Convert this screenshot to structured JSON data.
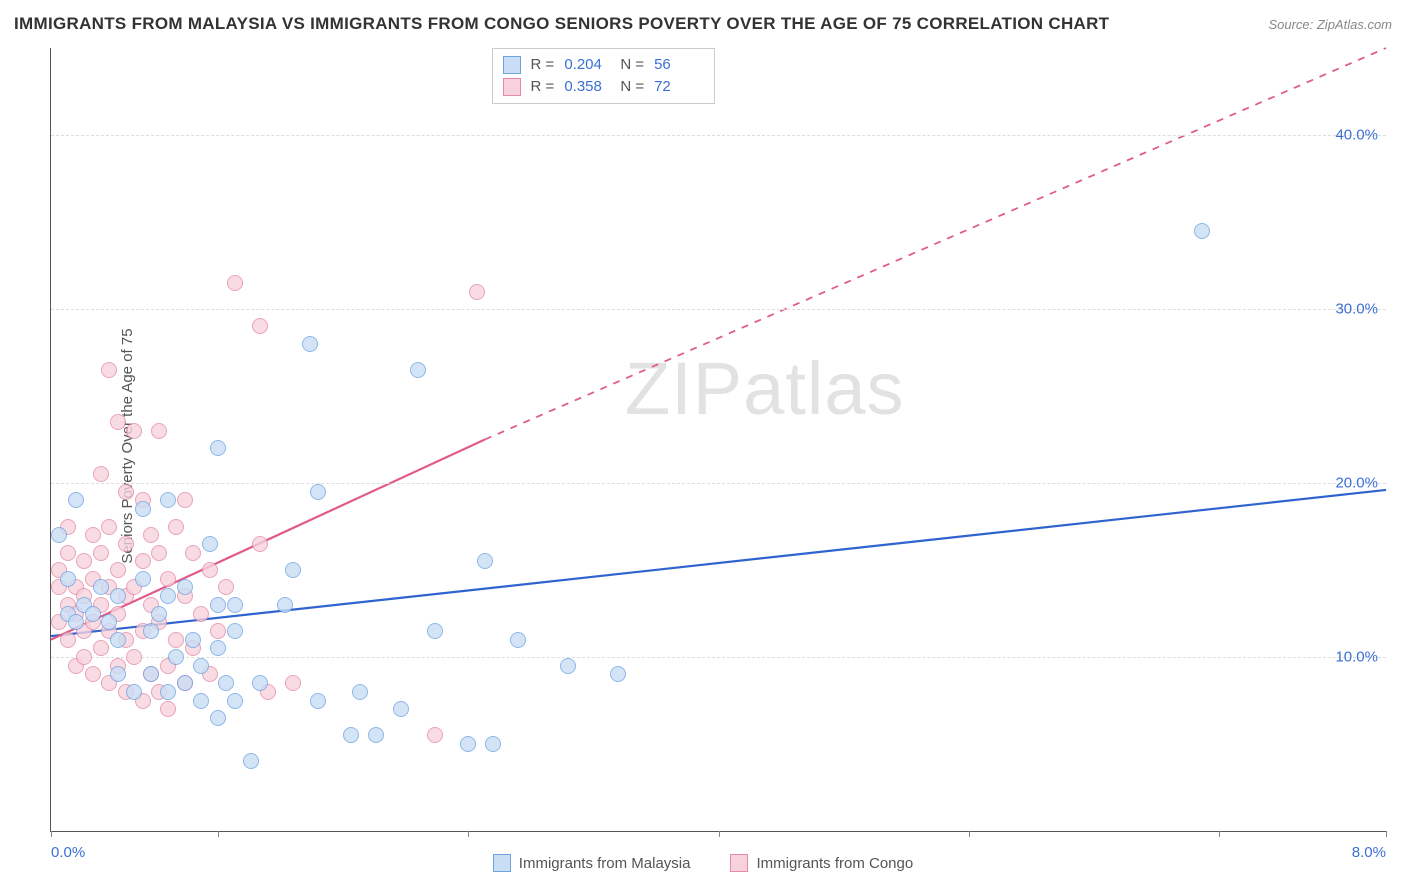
{
  "title": "IMMIGRANTS FROM MALAYSIA VS IMMIGRANTS FROM CONGO SENIORS POVERTY OVER THE AGE OF 75 CORRELATION CHART",
  "source_label": "Source: ZipAtlas.com",
  "y_axis_label": "Seniors Poverty Over the Age of 75",
  "watermark_prefix": "ZIP",
  "watermark_suffix": "atlas",
  "chart": {
    "type": "scatter",
    "xlim": [
      0.0,
      8.0
    ],
    "ylim": [
      0.0,
      45.0
    ],
    "x_ticks": [
      0.0,
      1.0,
      2.5,
      4.0,
      5.5,
      7.0,
      8.0
    ],
    "x_tick_labels_shown": {
      "0": "0.0%",
      "6": "8.0%"
    },
    "y_ticks": [
      10.0,
      20.0,
      30.0,
      40.0
    ],
    "y_tick_labels": [
      "10.0%",
      "20.0%",
      "30.0%",
      "40.0%"
    ],
    "background_color": "#ffffff",
    "grid_color": "#dddddd",
    "axis_color": "#555555",
    "marker_radius": 8,
    "marker_border_width": 1.3,
    "series": [
      {
        "key": "malaysia",
        "label": "Immigrants from Malaysia",
        "fill": "#c9ddf5",
        "stroke": "#6fa3e0",
        "R": "0.204",
        "N": "56",
        "trend": {
          "color": "#2f63d0",
          "width": 2.2,
          "solid_start": [
            0.0,
            11.2
          ],
          "solid_end": [
            8.0,
            19.6
          ],
          "dash_start": null,
          "dash_end": null
        },
        "points": [
          [
            0.05,
            17.0
          ],
          [
            0.1,
            12.5
          ],
          [
            0.1,
            14.5
          ],
          [
            0.15,
            12.0
          ],
          [
            0.15,
            19.0
          ],
          [
            0.2,
            13.0
          ],
          [
            0.25,
            12.5
          ],
          [
            0.3,
            14.0
          ],
          [
            0.35,
            12.0
          ],
          [
            0.4,
            9.0
          ],
          [
            0.4,
            11.0
          ],
          [
            0.4,
            13.5
          ],
          [
            0.5,
            8.0
          ],
          [
            0.55,
            14.5
          ],
          [
            0.55,
            18.5
          ],
          [
            0.6,
            9.0
          ],
          [
            0.6,
            11.5
          ],
          [
            0.65,
            12.5
          ],
          [
            0.7,
            8.0
          ],
          [
            0.7,
            13.5
          ],
          [
            0.7,
            19.0
          ],
          [
            0.75,
            10.0
          ],
          [
            0.8,
            8.5
          ],
          [
            0.8,
            14.0
          ],
          [
            0.85,
            11.0
          ],
          [
            0.9,
            7.5
          ],
          [
            0.9,
            9.5
          ],
          [
            0.95,
            16.5
          ],
          [
            1.0,
            6.5
          ],
          [
            1.0,
            10.5
          ],
          [
            1.0,
            13.0
          ],
          [
            1.0,
            22.0
          ],
          [
            1.05,
            8.5
          ],
          [
            1.1,
            7.5
          ],
          [
            1.1,
            11.5
          ],
          [
            1.1,
            13.0
          ],
          [
            1.2,
            4.0
          ],
          [
            1.25,
            8.5
          ],
          [
            1.4,
            13.0
          ],
          [
            1.45,
            15.0
          ],
          [
            1.55,
            28.0
          ],
          [
            1.6,
            7.5
          ],
          [
            1.6,
            19.5
          ],
          [
            1.8,
            5.5
          ],
          [
            1.85,
            8.0
          ],
          [
            1.95,
            5.5
          ],
          [
            2.1,
            7.0
          ],
          [
            2.2,
            26.5
          ],
          [
            2.3,
            11.5
          ],
          [
            2.5,
            5.0
          ],
          [
            2.6,
            15.5
          ],
          [
            2.65,
            5.0
          ],
          [
            2.8,
            11.0
          ],
          [
            3.1,
            9.5
          ],
          [
            3.4,
            9.0
          ],
          [
            6.9,
            34.5
          ]
        ]
      },
      {
        "key": "congo",
        "label": "Immigrants from Congo",
        "fill": "#f7d2dc",
        "stroke": "#e48aa5",
        "R": "0.358",
        "N": "72",
        "trend": {
          "color": "#e05a8a",
          "width": 2.2,
          "solid_start": [
            0.0,
            11.0
          ],
          "solid_end": [
            2.6,
            22.5
          ],
          "dash_start": [
            2.6,
            22.5
          ],
          "dash_end": [
            8.0,
            45.0
          ]
        },
        "points": [
          [
            0.05,
            12.0
          ],
          [
            0.05,
            14.0
          ],
          [
            0.05,
            15.0
          ],
          [
            0.1,
            11.0
          ],
          [
            0.1,
            13.0
          ],
          [
            0.1,
            16.0
          ],
          [
            0.1,
            17.5
          ],
          [
            0.15,
            9.5
          ],
          [
            0.15,
            12.5
          ],
          [
            0.15,
            14.0
          ],
          [
            0.2,
            10.0
          ],
          [
            0.2,
            11.5
          ],
          [
            0.2,
            13.5
          ],
          [
            0.2,
            15.5
          ],
          [
            0.25,
            9.0
          ],
          [
            0.25,
            12.0
          ],
          [
            0.25,
            14.5
          ],
          [
            0.25,
            17.0
          ],
          [
            0.3,
            10.5
          ],
          [
            0.3,
            13.0
          ],
          [
            0.3,
            16.0
          ],
          [
            0.3,
            20.5
          ],
          [
            0.35,
            8.5
          ],
          [
            0.35,
            11.5
          ],
          [
            0.35,
            14.0
          ],
          [
            0.35,
            17.5
          ],
          [
            0.35,
            26.5
          ],
          [
            0.4,
            9.5
          ],
          [
            0.4,
            12.5
          ],
          [
            0.4,
            15.0
          ],
          [
            0.4,
            23.5
          ],
          [
            0.45,
            8.0
          ],
          [
            0.45,
            11.0
          ],
          [
            0.45,
            13.5
          ],
          [
            0.45,
            16.5
          ],
          [
            0.45,
            19.5
          ],
          [
            0.5,
            10.0
          ],
          [
            0.5,
            14.0
          ],
          [
            0.5,
            23.0
          ],
          [
            0.55,
            7.5
          ],
          [
            0.55,
            11.5
          ],
          [
            0.55,
            15.5
          ],
          [
            0.55,
            19.0
          ],
          [
            0.6,
            9.0
          ],
          [
            0.6,
            13.0
          ],
          [
            0.6,
            17.0
          ],
          [
            0.65,
            8.0
          ],
          [
            0.65,
            12.0
          ],
          [
            0.65,
            16.0
          ],
          [
            0.65,
            23.0
          ],
          [
            0.7,
            9.5
          ],
          [
            0.7,
            14.5
          ],
          [
            0.7,
            7.0
          ],
          [
            0.75,
            11.0
          ],
          [
            0.75,
            17.5
          ],
          [
            0.8,
            8.5
          ],
          [
            0.8,
            13.5
          ],
          [
            0.8,
            19.0
          ],
          [
            0.85,
            10.5
          ],
          [
            0.85,
            16.0
          ],
          [
            0.9,
            12.5
          ],
          [
            0.95,
            9.0
          ],
          [
            0.95,
            15.0
          ],
          [
            1.0,
            11.5
          ],
          [
            1.05,
            14.0
          ],
          [
            1.1,
            31.5
          ],
          [
            1.25,
            16.5
          ],
          [
            1.25,
            29.0
          ],
          [
            1.3,
            8.0
          ],
          [
            1.45,
            8.5
          ],
          [
            2.3,
            5.5
          ],
          [
            2.55,
            31.0
          ]
        ]
      }
    ]
  },
  "stats_legend_labels": {
    "R": "R =",
    "N": "N ="
  }
}
